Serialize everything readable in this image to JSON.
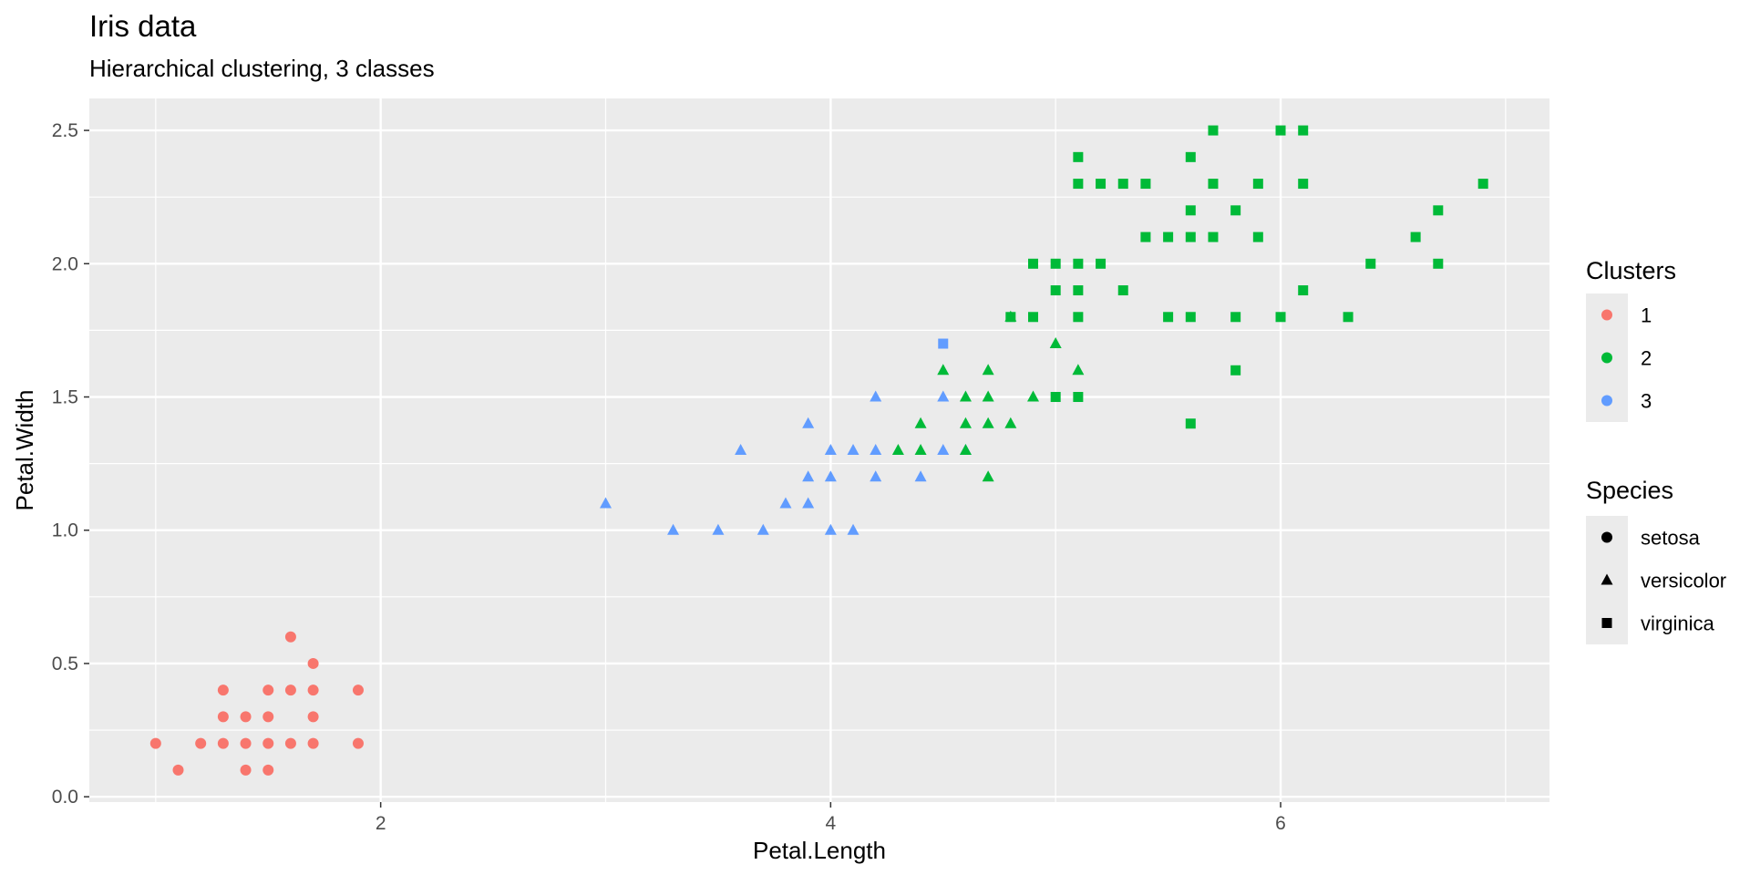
{
  "chart_data": {
    "type": "scatter",
    "title": "Iris data",
    "subtitle": "Hierarchical clustering, 3 classes",
    "xlabel": "Petal.Length",
    "ylabel": "Petal.Width",
    "xlim": [
      0.705,
      7.195
    ],
    "ylim": [
      -0.02,
      2.62
    ],
    "x_ticks": [
      2,
      4,
      6
    ],
    "x_tick_labels": [
      "2",
      "4",
      "6"
    ],
    "y_ticks": [
      0,
      0.5,
      1,
      1.5,
      2,
      2.5
    ],
    "y_tick_labels": [
      "0.0",
      "0.5",
      "1.0",
      "1.5",
      "2.0",
      "2.5"
    ],
    "grid": true,
    "legend_placement": "right",
    "colors": {
      "1": "#F8766D",
      "2": "#00BA38",
      "3": "#619CFF"
    },
    "legends": [
      {
        "title": "Clusters",
        "kind": "color",
        "items": [
          {
            "label": "1",
            "color": "#F8766D"
          },
          {
            "label": "2",
            "color": "#00BA38"
          },
          {
            "label": "3",
            "color": "#619CFF"
          }
        ]
      },
      {
        "title": "Species",
        "kind": "shape",
        "items": [
          {
            "label": "setosa",
            "shape": "circle"
          },
          {
            "label": "versicolor",
            "shape": "triangle"
          },
          {
            "label": "virginica",
            "shape": "square"
          }
        ]
      }
    ],
    "series": [
      {
        "cluster": "1",
        "species": "setosa",
        "shape": "circle",
        "color": "#F8766D",
        "points": [
          [
            1.0,
            0.2
          ],
          [
            1.1,
            0.1
          ],
          [
            1.2,
            0.2
          ],
          [
            1.3,
            0.2
          ],
          [
            1.3,
            0.3
          ],
          [
            1.3,
            0.4
          ],
          [
            1.4,
            0.1
          ],
          [
            1.4,
            0.2
          ],
          [
            1.4,
            0.3
          ],
          [
            1.5,
            0.1
          ],
          [
            1.5,
            0.2
          ],
          [
            1.5,
            0.3
          ],
          [
            1.5,
            0.4
          ],
          [
            1.6,
            0.2
          ],
          [
            1.6,
            0.4
          ],
          [
            1.6,
            0.6
          ],
          [
            1.7,
            0.2
          ],
          [
            1.7,
            0.3
          ],
          [
            1.7,
            0.4
          ],
          [
            1.7,
            0.5
          ],
          [
            1.9,
            0.2
          ],
          [
            1.9,
            0.4
          ]
        ]
      },
      {
        "cluster": "3",
        "species": "versicolor",
        "shape": "triangle",
        "color": "#619CFF",
        "points": [
          [
            3.0,
            1.1
          ],
          [
            3.3,
            1.0
          ],
          [
            3.5,
            1.0
          ],
          [
            3.6,
            1.3
          ],
          [
            3.7,
            1.0
          ],
          [
            3.8,
            1.1
          ],
          [
            3.9,
            1.1
          ],
          [
            3.9,
            1.2
          ],
          [
            3.9,
            1.4
          ],
          [
            4.0,
            1.0
          ],
          [
            4.0,
            1.2
          ],
          [
            4.0,
            1.3
          ],
          [
            4.1,
            1.0
          ],
          [
            4.1,
            1.3
          ],
          [
            4.2,
            1.2
          ],
          [
            4.2,
            1.3
          ],
          [
            4.2,
            1.5
          ],
          [
            4.4,
            1.2
          ],
          [
            4.5,
            1.3
          ],
          [
            4.5,
            1.5
          ],
          [
            4.6,
            1.3
          ]
        ]
      },
      {
        "cluster": "2",
        "species": "versicolor",
        "shape": "triangle",
        "color": "#00BA38",
        "points": [
          [
            4.3,
            1.3
          ],
          [
            4.4,
            1.3
          ],
          [
            4.4,
            1.4
          ],
          [
            4.5,
            1.6
          ],
          [
            4.6,
            1.3
          ],
          [
            4.6,
            1.4
          ],
          [
            4.6,
            1.5
          ],
          [
            4.7,
            1.2
          ],
          [
            4.7,
            1.4
          ],
          [
            4.7,
            1.5
          ],
          [
            4.7,
            1.6
          ],
          [
            4.8,
            1.4
          ],
          [
            4.8,
            1.8
          ],
          [
            4.9,
            1.5
          ],
          [
            5.0,
            1.7
          ],
          [
            5.1,
            1.6
          ]
        ]
      },
      {
        "cluster": "3",
        "species": "virginica",
        "shape": "square",
        "color": "#619CFF",
        "points": [
          [
            4.5,
            1.7
          ]
        ]
      },
      {
        "cluster": "2",
        "species": "virginica",
        "shape": "square",
        "color": "#00BA38",
        "points": [
          [
            4.8,
            1.8
          ],
          [
            4.9,
            1.8
          ],
          [
            4.9,
            2.0
          ],
          [
            5.0,
            1.5
          ],
          [
            5.0,
            1.9
          ],
          [
            5.0,
            2.0
          ],
          [
            5.1,
            1.5
          ],
          [
            5.1,
            1.8
          ],
          [
            5.1,
            1.9
          ],
          [
            5.1,
            2.0
          ],
          [
            5.1,
            2.3
          ],
          [
            5.1,
            2.4
          ],
          [
            5.2,
            2.0
          ],
          [
            5.2,
            2.3
          ],
          [
            5.3,
            1.9
          ],
          [
            5.3,
            2.3
          ],
          [
            5.4,
            2.1
          ],
          [
            5.4,
            2.3
          ],
          [
            5.5,
            1.8
          ],
          [
            5.5,
            2.1
          ],
          [
            5.6,
            1.4
          ],
          [
            5.6,
            1.8
          ],
          [
            5.6,
            2.1
          ],
          [
            5.6,
            2.2
          ],
          [
            5.6,
            2.4
          ],
          [
            5.7,
            2.1
          ],
          [
            5.7,
            2.3
          ],
          [
            5.7,
            2.5
          ],
          [
            5.8,
            1.6
          ],
          [
            5.8,
            1.8
          ],
          [
            5.8,
            2.2
          ],
          [
            5.9,
            2.1
          ],
          [
            5.9,
            2.3
          ],
          [
            6.0,
            1.8
          ],
          [
            6.0,
            2.5
          ],
          [
            6.1,
            1.9
          ],
          [
            6.1,
            2.3
          ],
          [
            6.1,
            2.5
          ],
          [
            6.3,
            1.8
          ],
          [
            6.4,
            2.0
          ],
          [
            6.6,
            2.1
          ],
          [
            6.7,
            2.0
          ],
          [
            6.7,
            2.2
          ],
          [
            6.9,
            2.3
          ]
        ]
      }
    ]
  }
}
